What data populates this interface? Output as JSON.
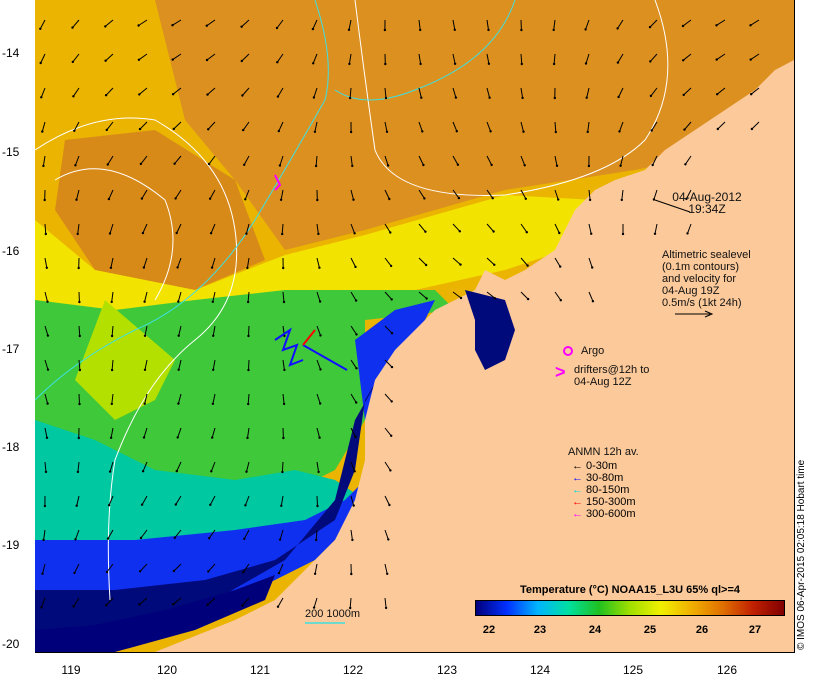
{
  "map": {
    "lat_ticks": [
      "-14",
      "-15",
      "-16",
      "-17",
      "-18",
      "-19",
      "-20"
    ],
    "lon_ticks": [
      "119",
      "120",
      "121",
      "122",
      "123",
      "124",
      "125",
      "126"
    ],
    "date_line1": "04-Aug-2012",
    "date_line2": "19:34Z",
    "altimetry_text": [
      "Altimetric sealevel",
      "(0.1m contours)",
      "and velocity for",
      "04-Aug 19Z",
      "0.5m/s (1kt 24h)"
    ],
    "argo_label": "Argo",
    "drifters_label": [
      "drifters@12h to",
      "04-Aug 12Z"
    ],
    "anmn_title": "ANMN 12h av.",
    "anmn_items": [
      {
        "label": "0-30m",
        "color": "#000000"
      },
      {
        "label": "30-80m",
        "color": "#1010ff"
      },
      {
        "label": "80-150m",
        "color": "#00e0e0"
      },
      {
        "label": "150-300m",
        "color": "#ff0000"
      },
      {
        "label": "300-600m",
        "color": "#ff00ff"
      }
    ],
    "bathy_label": "200  1000m",
    "colorbar_title": "Temperature (°C) NOAA15_L3U 65% ql>=4",
    "colorbar_ticks": [
      "22",
      "23",
      "24",
      "25",
      "26",
      "27"
    ],
    "colorbar_colors": [
      "#00007a",
      "#0030ff",
      "#00b4ff",
      "#00e0a0",
      "#20c020",
      "#a0e000",
      "#f0f000",
      "#f0b000",
      "#e07000",
      "#c02000",
      "#800000"
    ],
    "credit": "© IMOS 06-Apr-2015 02:05:18 Hobart time",
    "land_color": "#fbc99a"
  }
}
